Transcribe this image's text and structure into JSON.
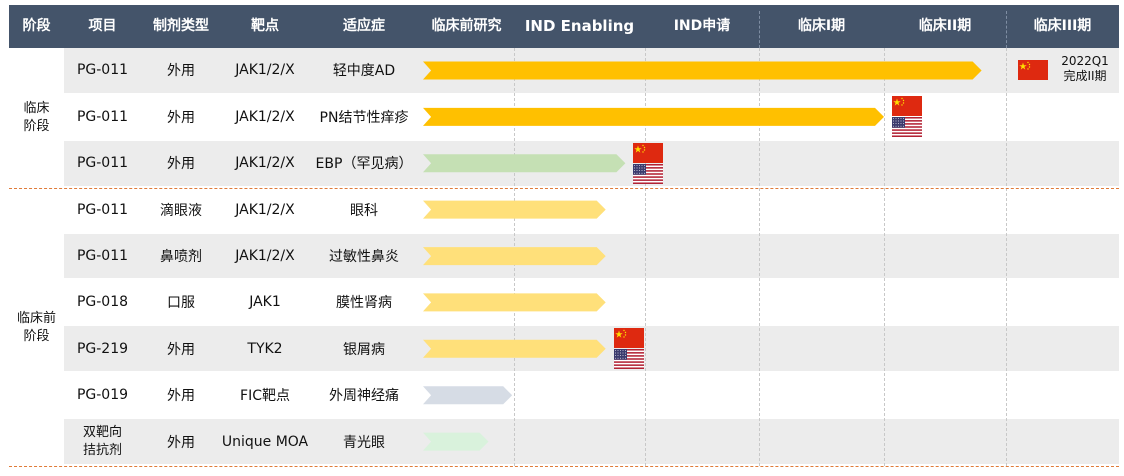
{
  "header": {
    "stage": "阶段",
    "project": "项目",
    "dosage": "制剂类型",
    "target": "靶点",
    "indication": "适应症",
    "phases": [
      "临床前研究",
      "IND Enabling",
      "IND申请",
      "临床I期",
      "临床II期",
      "临床III期"
    ]
  },
  "groups": [
    {
      "label": "临床\n阶段"
    },
    {
      "label": "临床前\n阶段"
    }
  ],
  "rows": [
    {
      "project": "PG-011",
      "dosage": "外用",
      "target": "JAK1/2/X",
      "indication": "轻中度AD",
      "progress_phases": 4.8,
      "bar_color": "#ffc000",
      "flags": [
        "cn"
      ],
      "note": "2022Q1\n完成II期"
    },
    {
      "project": "PG-011",
      "dosage": "外用",
      "target": "JAK1/2/X",
      "indication": "PN结节性痒疹",
      "progress_phases": 4.0,
      "bar_color": "#ffc000",
      "flags": [
        "cn",
        "us"
      ]
    },
    {
      "project": "PG-011",
      "dosage": "外用",
      "target": "JAK1/2/X",
      "indication": "EBP（罕见病）",
      "progress_phases": 1.85,
      "bar_color": "#c5e0b4",
      "flags": [
        "cn",
        "us"
      ]
    },
    {
      "project": "PG-011",
      "dosage": "滴眼液",
      "target": "JAK1/2/X",
      "indication": "眼科",
      "progress_phases": 1.7,
      "bar_color": "#ffe07a",
      "flags": []
    },
    {
      "project": "PG-011",
      "dosage": "鼻喷剂",
      "target": "JAK1/2/X",
      "indication": "过敏性鼻炎",
      "progress_phases": 1.7,
      "bar_color": "#ffe07a",
      "flags": []
    },
    {
      "project": "PG-018",
      "dosage": "口服",
      "target": "JAK1",
      "indication": "膜性肾病",
      "progress_phases": 1.7,
      "bar_color": "#ffe07a",
      "flags": []
    },
    {
      "project": "PG-219",
      "dosage": "外用",
      "target": "TYK2",
      "indication": "银屑病",
      "progress_phases": 1.7,
      "bar_color": "#ffe07a",
      "flags": [
        "cn",
        "us"
      ]
    },
    {
      "project": "PG-019",
      "dosage": "外用",
      "target": "FIC靶点",
      "indication": "外周神经痛",
      "progress_phases": 0.98,
      "bar_color": "#d6dce5",
      "flags": []
    },
    {
      "project": "双靶向\n拮抗剂",
      "dosage": "外用",
      "target": "Unique MOA",
      "indication": "青光眼",
      "progress_phases": 0.72,
      "bar_color": "#d9f2dc",
      "flags": []
    }
  ]
}
